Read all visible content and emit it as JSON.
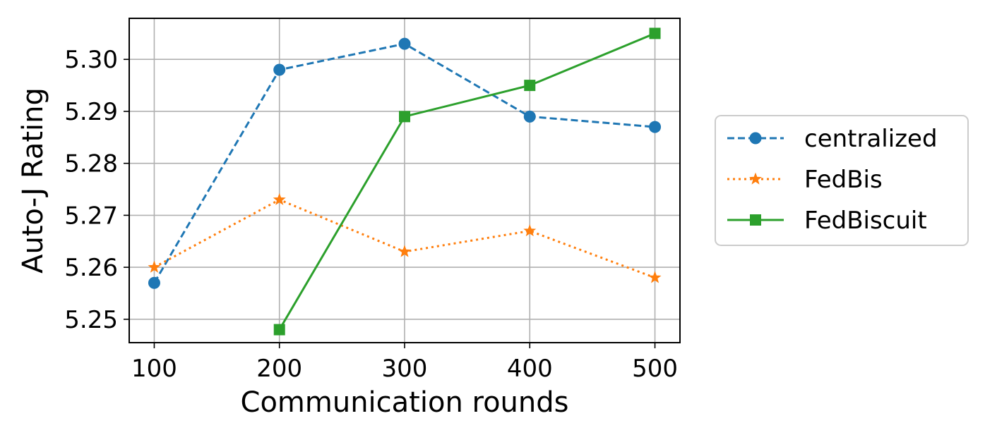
{
  "chart_data": {
    "type": "line",
    "xlabel": "Communication rounds",
    "ylabel": "Auto-J Rating",
    "xlim": [
      80,
      520
    ],
    "ylim": [
      5.2455,
      5.3079
    ],
    "xticks": [
      100,
      200,
      300,
      400,
      500
    ],
    "xtick_labels": [
      "100",
      "200",
      "300",
      "400",
      "500"
    ],
    "yticks": [
      5.25,
      5.26,
      5.27,
      5.28,
      5.29,
      5.3
    ],
    "ytick_labels": [
      "5.25",
      "5.26",
      "5.27",
      "5.28",
      "5.29",
      "5.30"
    ],
    "grid": true,
    "legend_position": "outside right",
    "series": [
      {
        "name": "centralized",
        "color": "#1f77b4",
        "linestyle": "dashed",
        "marker": "circle",
        "x": [
          100,
          200,
          300,
          400,
          500
        ],
        "y": [
          5.257,
          5.298,
          5.303,
          5.289,
          5.287
        ]
      },
      {
        "name": "FedBis",
        "color": "#ff7f0e",
        "linestyle": "dotted",
        "marker": "star",
        "x": [
          100,
          200,
          300,
          400,
          500
        ],
        "y": [
          5.26,
          5.273,
          5.263,
          5.267,
          5.258
        ]
      },
      {
        "name": "FedBiscuit",
        "color": "#2ca02c",
        "linestyle": "solid",
        "marker": "square",
        "x": [
          200,
          300,
          400,
          500
        ],
        "y": [
          5.248,
          5.289,
          5.295,
          5.305
        ]
      }
    ]
  }
}
